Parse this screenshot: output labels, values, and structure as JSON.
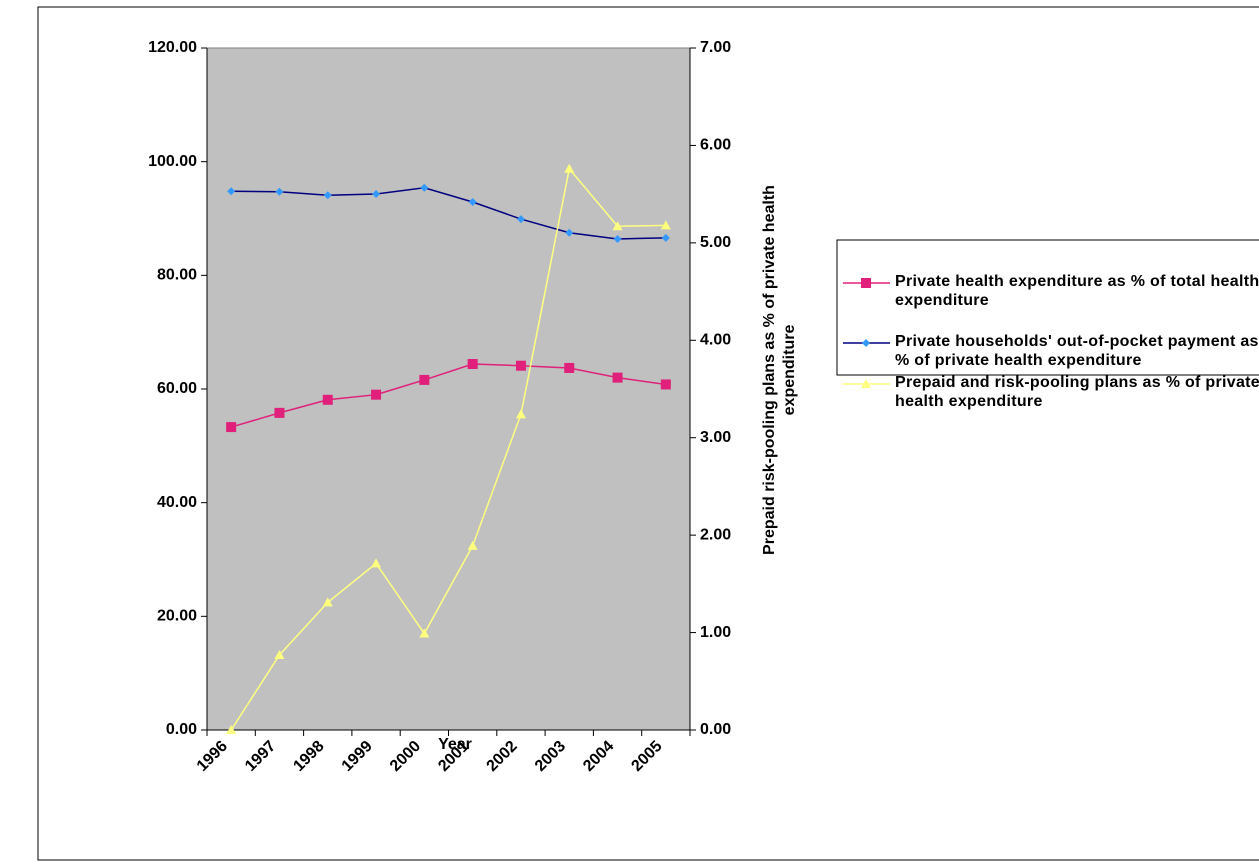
{
  "chart_data": {
    "type": "line",
    "categories": [
      "1996",
      "1997",
      "1998",
      "1999",
      "2000",
      "2001",
      "2002",
      "2003",
      "2004",
      "2005"
    ],
    "xlabel": "Year",
    "y2label": "Prepaid risk-pooling plans as % of private health expenditure",
    "series": [
      {
        "name": "Private health expenditure as % of total health expenditure",
        "color": "#e0207a",
        "marker": "square",
        "values": [
          53.3,
          55.8,
          58.1,
          59.0,
          61.6,
          64.4,
          64.1,
          63.7,
          62.0,
          60.8
        ]
      },
      {
        "name": "Private households' out-of-pocket payment as % of private health expenditure",
        "color": "#000080",
        "marker": "diamond",
        "values": [
          94.8,
          94.7,
          94.1,
          94.3,
          95.4,
          92.9,
          89.9,
          87.5,
          86.4,
          86.6
        ]
      },
      {
        "name": "Prepaid and risk-pooling plans as % of private health expenditure",
        "color": "#ffff80",
        "marker": "triangle",
        "axis": "y2",
        "values": [
          0.0,
          0.77,
          1.31,
          1.71,
          0.99,
          1.89,
          3.24,
          5.76,
          5.17,
          5.18
        ]
      }
    ],
    "ylim": [
      0,
      120
    ],
    "yticks": [
      {
        "value": 0,
        "label": "0.00"
      },
      {
        "value": 20,
        "label": "20.00"
      },
      {
        "value": 40,
        "label": "40.00"
      },
      {
        "value": 60,
        "label": "60.00"
      },
      {
        "value": 80,
        "label": "80.00"
      },
      {
        "value": 100,
        "label": "100.00"
      },
      {
        "value": 120,
        "label": "120.00"
      }
    ],
    "y2lim": [
      0,
      7
    ],
    "y2ticks": [
      {
        "value": 0,
        "label": "0.00"
      },
      {
        "value": 1,
        "label": "1.00"
      },
      {
        "value": 2,
        "label": "2.00"
      },
      {
        "value": 3,
        "label": "3.00"
      },
      {
        "value": 4,
        "label": "4.00"
      },
      {
        "value": 5,
        "label": "5.00"
      },
      {
        "value": 6,
        "label": "6.00"
      },
      {
        "value": 7,
        "label": "7.00"
      }
    ],
    "plot_background": "#c0c0c0",
    "legend": "right"
  }
}
